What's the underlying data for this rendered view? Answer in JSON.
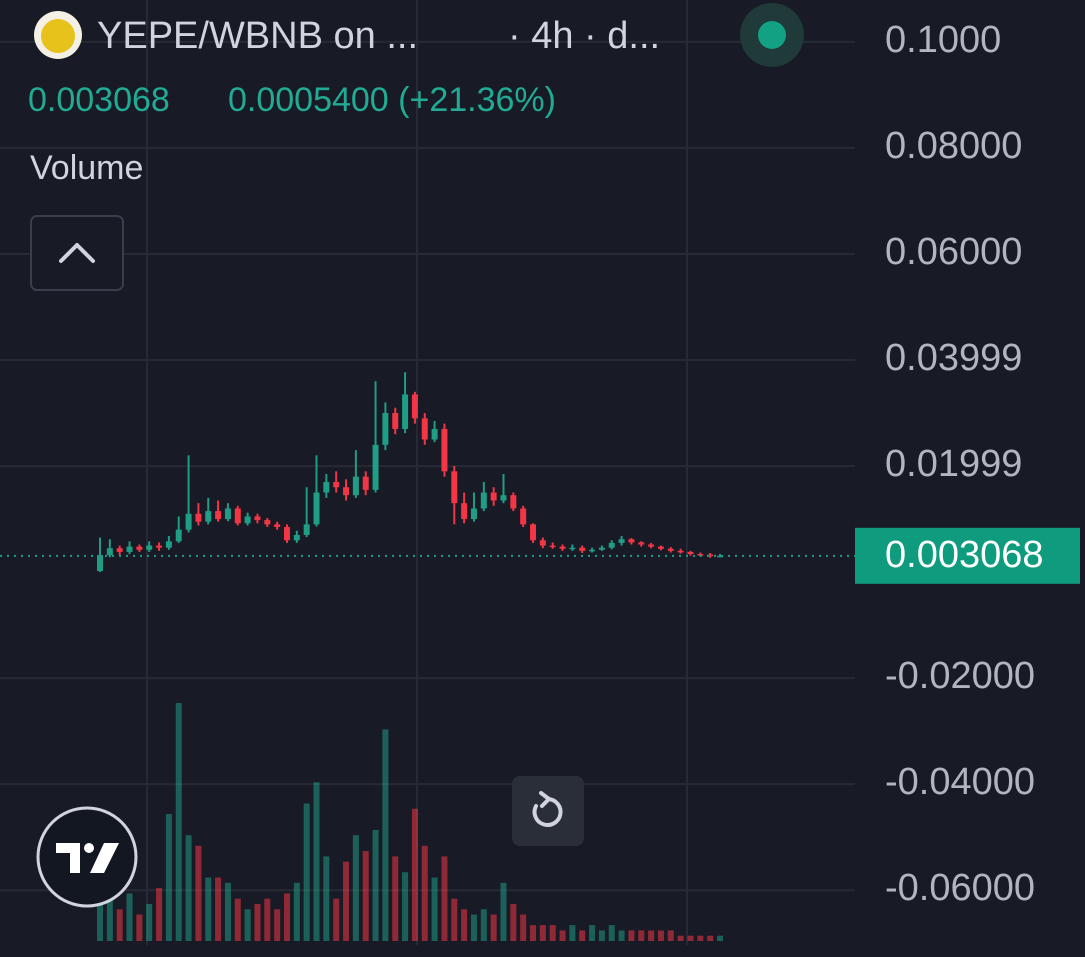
{
  "chart_data": {
    "type": "candlestick",
    "title": "YEPE/WBNB on ...",
    "subtitle": "· 4h · d...",
    "change_label": "0.0005400 (+21.36%)",
    "volume_label": "Volume",
    "up_color": "#1f9d85",
    "down_color": "#f23645",
    "grid": true,
    "ylim": [
      -0.0726,
      0.1079
    ],
    "yticks": [
      {
        "value": 0.1,
        "label": "0.1000"
      },
      {
        "value": 0.08,
        "label": "0.08000"
      },
      {
        "value": 0.06,
        "label": "0.06000"
      },
      0.03999,
      0.01999,
      {
        "value": -0.02,
        "label": "-0.02000"
      },
      {
        "value": -0.04,
        "label": "-0.04000"
      },
      {
        "value": -0.06,
        "label": "-0.06000"
      }
    ],
    "open": [
      0.0002,
      0.0032,
      0.0045,
      0.0038,
      0.0048,
      0.0042,
      0.005,
      0.0046,
      0.0058,
      0.008,
      0.011,
      0.0095,
      0.0115,
      0.01,
      0.012,
      0.0092,
      0.0105,
      0.0098,
      0.009,
      0.0085,
      0.006,
      0.007,
      0.009,
      0.015,
      0.017,
      0.016,
      0.0145,
      0.018,
      0.0155,
      0.024,
      0.03,
      0.027,
      0.0335,
      0.029,
      0.025,
      0.027,
      0.019,
      0.013,
      0.01,
      0.012,
      0.015,
      0.0135,
      0.0145,
      0.012,
      0.009,
      0.006,
      0.005,
      0.0048,
      0.0044,
      0.0046,
      0.004,
      0.0042,
      0.0046,
      0.0055,
      0.0062,
      0.0056,
      0.0052,
      0.0048,
      0.0044,
      0.004,
      0.0038,
      0.0034,
      0.0033,
      0.003
    ],
    "high": [
      0.0065,
      0.0062,
      0.005,
      0.0058,
      0.0052,
      0.0058,
      0.0056,
      0.0068,
      0.0105,
      0.022,
      0.013,
      0.014,
      0.0135,
      0.013,
      0.0125,
      0.0112,
      0.011,
      0.0102,
      0.0095,
      0.009,
      0.0078,
      0.016,
      0.022,
      0.0185,
      0.019,
      0.0175,
      0.023,
      0.019,
      0.036,
      0.032,
      0.031,
      0.0377,
      0.034,
      0.03,
      0.0285,
      0.028,
      0.02,
      0.015,
      0.015,
      0.017,
      0.016,
      0.0185,
      0.015,
      0.0125,
      0.0092,
      0.0065,
      0.0056,
      0.0052,
      0.0052,
      0.005,
      0.0046,
      0.005,
      0.006,
      0.0068,
      0.0064,
      0.0058,
      0.0055,
      0.005,
      0.0047,
      0.0044,
      0.004,
      0.0037,
      0.0036,
      0.0034
    ],
    "low": [
      0.0,
      0.0028,
      0.0032,
      0.0034,
      0.0038,
      0.0038,
      0.004,
      0.0042,
      0.0055,
      0.0075,
      0.0088,
      0.009,
      0.0095,
      0.0096,
      0.0088,
      0.0088,
      0.0092,
      0.0085,
      0.008,
      0.0055,
      0.0055,
      0.0066,
      0.0086,
      0.014,
      0.015,
      0.0135,
      0.014,
      0.0145,
      0.015,
      0.023,
      0.026,
      0.0262,
      0.028,
      0.024,
      0.0245,
      0.018,
      0.009,
      0.0092,
      0.0095,
      0.0115,
      0.0125,
      0.013,
      0.0115,
      0.0085,
      0.0055,
      0.0045,
      0.0044,
      0.004,
      0.004,
      0.0036,
      0.0037,
      0.004,
      0.0043,
      0.005,
      0.0052,
      0.0048,
      0.0045,
      0.0041,
      0.0037,
      0.0035,
      0.0031,
      0.003,
      0.0027,
      0.0028
    ],
    "close": [
      0.0032,
      0.0045,
      0.0038,
      0.0048,
      0.0042,
      0.005,
      0.0046,
      0.0058,
      0.008,
      0.011,
      0.0095,
      0.0115,
      0.01,
      0.012,
      0.0092,
      0.0105,
      0.0098,
      0.009,
      0.0085,
      0.006,
      0.007,
      0.009,
      0.015,
      0.017,
      0.016,
      0.0145,
      0.018,
      0.0155,
      0.024,
      0.03,
      0.027,
      0.0335,
      0.029,
      0.025,
      0.027,
      0.019,
      0.013,
      0.01,
      0.012,
      0.015,
      0.0135,
      0.0145,
      0.012,
      0.009,
      0.006,
      0.005,
      0.0048,
      0.0044,
      0.0046,
      0.004,
      0.0042,
      0.0046,
      0.0055,
      0.0062,
      0.0056,
      0.0052,
      0.0048,
      0.0044,
      0.004,
      0.0038,
      0.0034,
      0.0033,
      0.003,
      0.003068
    ],
    "volume": [
      7,
      8,
      6,
      9,
      5,
      7,
      10,
      24,
      45,
      20,
      18,
      12,
      12,
      11,
      8,
      6,
      7,
      8,
      6,
      9,
      11,
      26,
      30,
      16,
      8,
      15,
      20,
      17,
      21,
      40,
      16,
      13,
      25,
      18,
      12,
      16,
      8,
      6,
      5,
      6,
      5,
      11,
      7,
      5,
      3,
      3,
      3,
      2,
      3,
      2,
      3,
      2,
      3,
      2,
      2,
      2,
      2,
      2,
      2,
      1,
      1,
      1,
      1,
      1
    ]
  }
}
